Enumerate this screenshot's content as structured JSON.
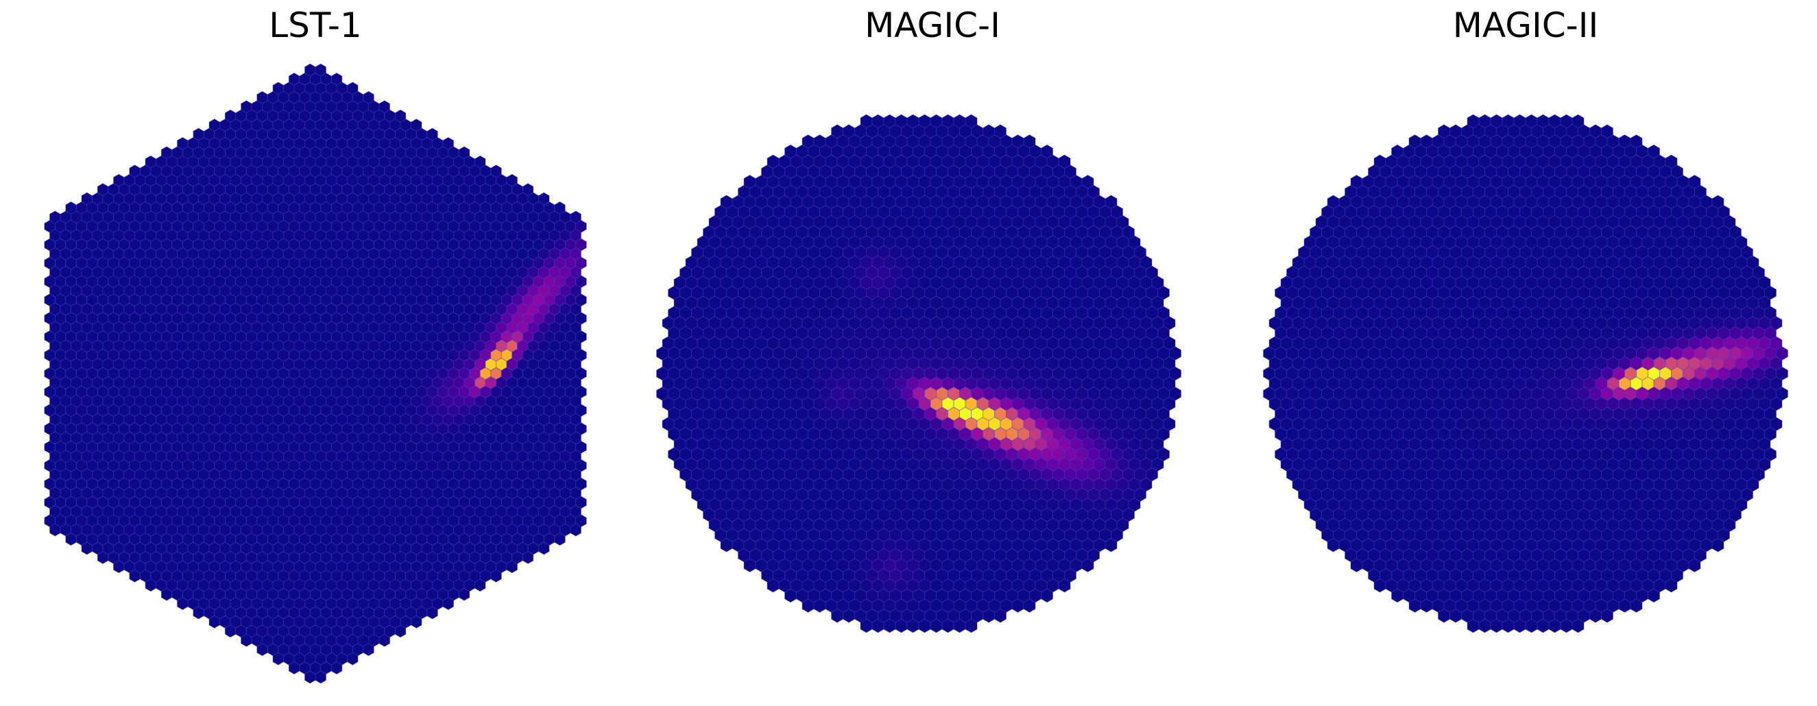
{
  "figure": {
    "colormap": "plasma",
    "cameras": [
      {
        "id": "lst",
        "title": "LST-1",
        "shape": "hexagon",
        "background_color": "#0d0887",
        "image_events": [
          {
            "label": "shower-core",
            "u": 0.58,
            "v": -0.03,
            "length": 0.06,
            "width": 0.02,
            "angle_deg": -50,
            "amp": 1.0
          },
          {
            "label": "shower-tail",
            "u": 0.7,
            "v": -0.22,
            "length": 0.17,
            "width": 0.04,
            "angle_deg": -50,
            "amp": 0.28
          },
          {
            "label": "faint-glow",
            "u": 0.45,
            "v": 0.05,
            "length": 0.08,
            "width": 0.05,
            "angle_deg": -50,
            "amp": 0.08
          }
        ]
      },
      {
        "id": "magic1",
        "title": "MAGIC-I",
        "shape": "circle",
        "background_color": "#0d0887",
        "image_events": [
          {
            "label": "shower-core",
            "u": 0.15,
            "v": 0.13,
            "length": 0.1,
            "width": 0.035,
            "angle_deg": 22,
            "amp": 1.0
          },
          {
            "label": "shower-mid",
            "u": 0.33,
            "v": 0.2,
            "length": 0.1,
            "width": 0.05,
            "angle_deg": 22,
            "amp": 0.6
          },
          {
            "label": "shower-tail",
            "u": 0.55,
            "v": 0.3,
            "length": 0.14,
            "width": 0.07,
            "angle_deg": 22,
            "amp": 0.2
          },
          {
            "label": "halo",
            "u": 0.25,
            "v": 0.15,
            "length": 0.3,
            "width": 0.12,
            "angle_deg": 22,
            "amp": 0.07
          },
          {
            "label": "noise-patch",
            "u": -0.16,
            "v": -0.38,
            "length": 0.06,
            "width": 0.06,
            "angle_deg": 0,
            "amp": 0.06
          },
          {
            "label": "noise-patch",
            "u": -0.3,
            "v": 0.08,
            "length": 0.05,
            "width": 0.05,
            "angle_deg": 0,
            "amp": 0.05
          },
          {
            "label": "noise-patch",
            "u": -0.1,
            "v": 0.75,
            "length": 0.06,
            "width": 0.06,
            "angle_deg": 0,
            "amp": 0.06
          }
        ]
      },
      {
        "id": "magic2",
        "title": "MAGIC-II",
        "shape": "circle",
        "background_color": "#0d0887",
        "image_events": [
          {
            "label": "shower-core",
            "u": 0.46,
            "v": 0.02,
            "length": 0.09,
            "width": 0.028,
            "angle_deg": -14,
            "amp": 1.0
          },
          {
            "label": "shower-tail",
            "u": 0.72,
            "v": -0.05,
            "length": 0.18,
            "width": 0.05,
            "angle_deg": -14,
            "amp": 0.35
          },
          {
            "label": "halo",
            "u": 0.55,
            "v": 0.0,
            "length": 0.28,
            "width": 0.09,
            "angle_deg": -14,
            "amp": 0.08
          }
        ]
      }
    ]
  }
}
